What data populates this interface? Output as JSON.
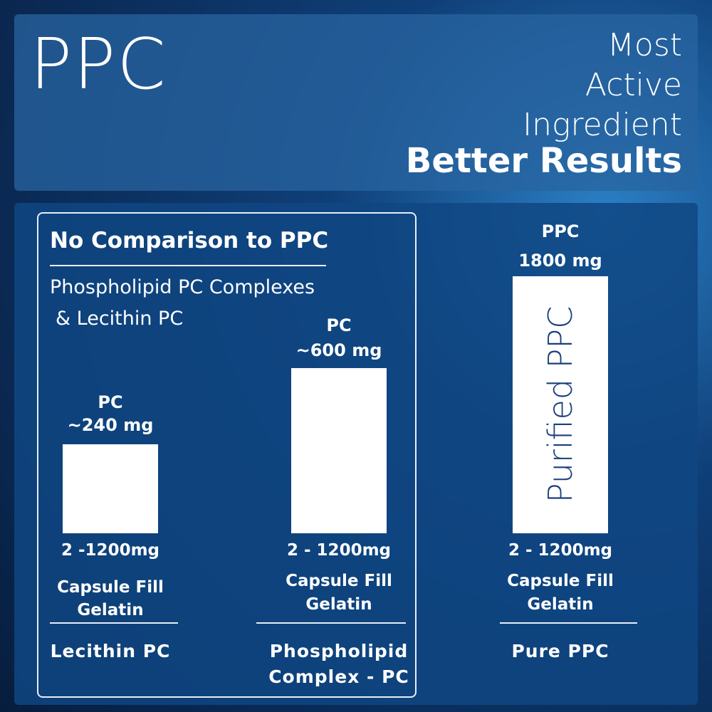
{
  "header": {
    "title": "PPC",
    "tagline": [
      "Most",
      "Active",
      "Ingredient"
    ],
    "tagline_bold": "Better Results"
  },
  "comparison": {
    "heading": "No Comparison to PPC",
    "subtitle_line1": "Phospholipid PC Complexes",
    "subtitle_line2": "&  Lecithin PC"
  },
  "chart_data": {
    "type": "bar",
    "categories": [
      "Lecithin PC",
      "Phospholipid Complex - PC",
      "Pure PPC"
    ],
    "values": [
      240,
      600,
      1800
    ],
    "unit": "mg",
    "value_labels": [
      [
        "PC",
        "~240 mg"
      ],
      [
        "PC",
        "~600 mg"
      ],
      [
        "PPC",
        "1800 mg"
      ]
    ],
    "capsule_range": [
      "2 -1200mg",
      "2 - 1200mg",
      "2 - 1200mg"
    ],
    "capsule_fill": [
      [
        "Capsule Fill",
        "Gelatin"
      ],
      [
        "Capsule Fill",
        "Gelatin"
      ],
      [
        "Capsule Fill",
        "Gelatin"
      ]
    ],
    "category_lines": [
      [
        "Lecithin PC"
      ],
      [
        "Phospholipid",
        "Complex - PC"
      ],
      [
        "Pure PPC"
      ]
    ],
    "bar_inner_text": [
      "",
      "",
      "Purified PPC"
    ],
    "colors": {
      "bar": "#ffffff",
      "bar_text": "#1a3f7a",
      "panel": "#124a85"
    }
  }
}
